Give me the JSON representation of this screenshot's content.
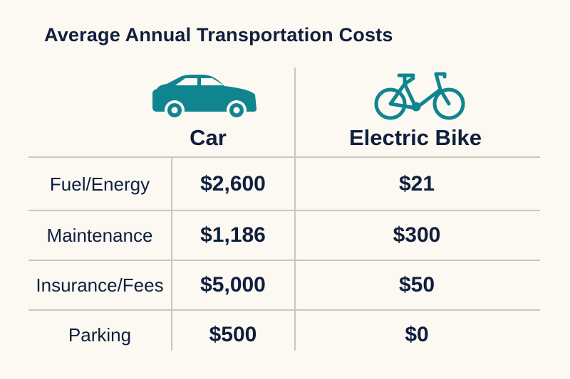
{
  "title": "Average Annual Transportation Costs",
  "colors": {
    "background": "#fcf9f2",
    "accent": "#0f8590",
    "text": "#0f1f3d",
    "grid": "#c9c6c0"
  },
  "chart_data": {
    "type": "table",
    "title": "Average Annual Transportation Costs",
    "columns": [
      "Car",
      "Electric Bike"
    ],
    "column_icons": [
      "car-icon",
      "bicycle-icon"
    ],
    "rows": [
      {
        "label": "Fuel/Energy",
        "values": [
          "$2,600",
          "$21"
        ]
      },
      {
        "label": "Maintenance",
        "values": [
          "$1,186",
          "$300"
        ]
      },
      {
        "label": "Insurance/Fees",
        "values": [
          "$5,000",
          "$50"
        ]
      },
      {
        "label": "Parking",
        "values": [
          "$500",
          "$0"
        ]
      }
    ]
  }
}
